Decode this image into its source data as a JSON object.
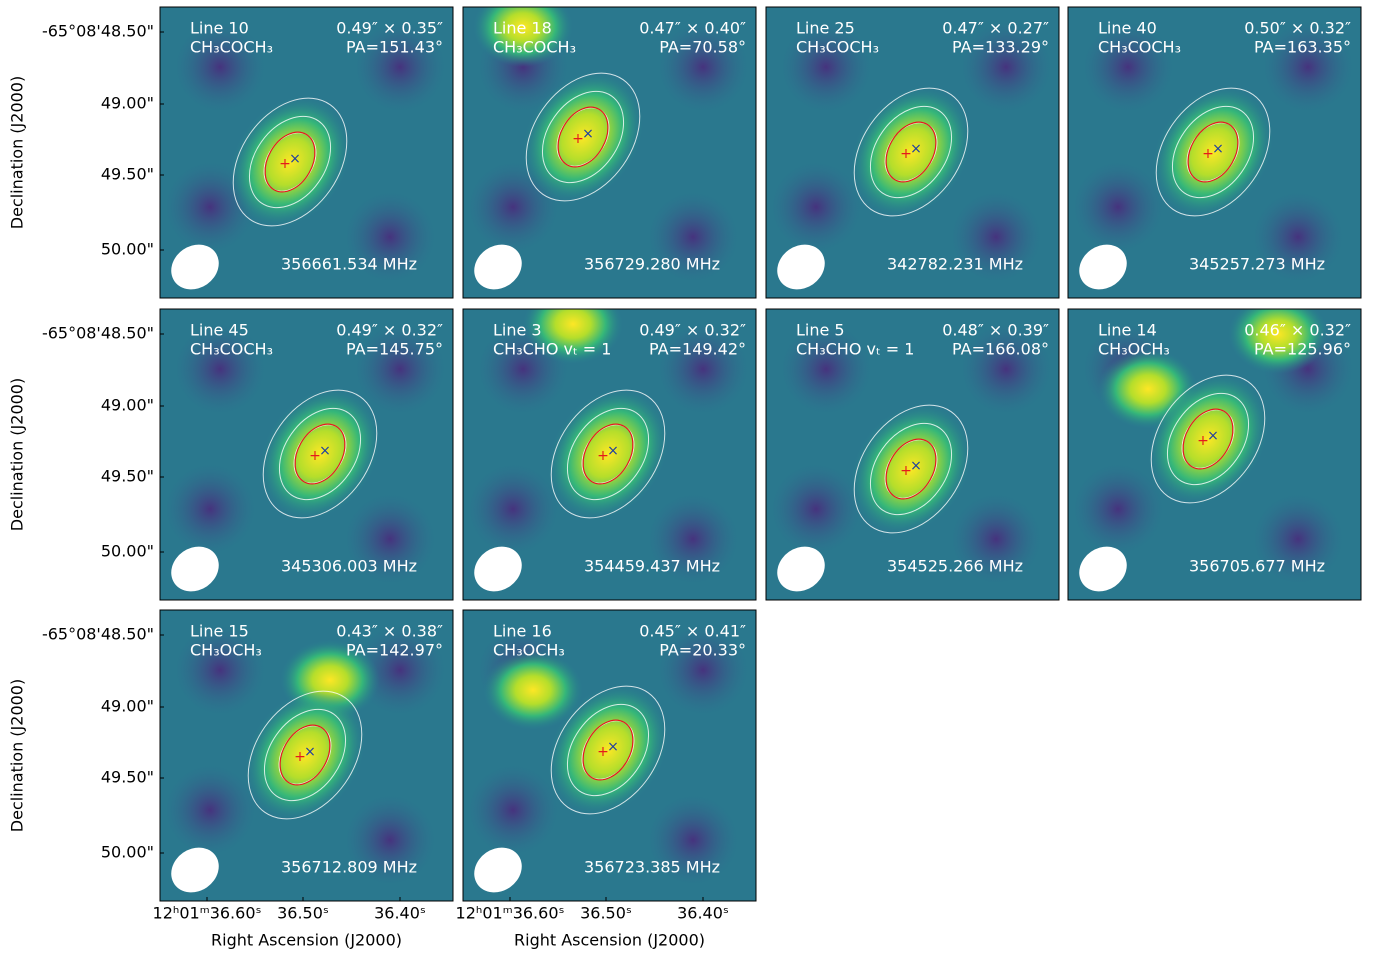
{
  "axes": {
    "y_label": "Declination (J2000)",
    "x_label": "Right Ascension (J2000)",
    "y_ticks": [
      "-65°08'48.50\"",
      "49.00\"",
      "49.50\"",
      "50.00\""
    ],
    "x_ticks": [
      "12ʰ01ᵐ36.60ˢ",
      "36.50ˢ",
      "36.40ˢ"
    ]
  },
  "panels": [
    {
      "line": "Line 10",
      "molecule": "CH₃COCH₃",
      "beam": "0.49″ × 0.35″",
      "pa": "PA=151.43°",
      "frequency": "356661.534 MHz"
    },
    {
      "line": "Line 18",
      "molecule": "CH₃COCH₃",
      "beam": "0.47″ × 0.40″",
      "pa": "PA=70.58°",
      "frequency": "356729.280 MHz"
    },
    {
      "line": "Line 25",
      "molecule": "CH₃COCH₃",
      "beam": "0.47″ × 0.27″",
      "pa": "PA=133.29°",
      "frequency": "342782.231 MHz"
    },
    {
      "line": "Line 40",
      "molecule": "CH₃COCH₃",
      "beam": "0.50″ × 0.32″",
      "pa": "PA=163.35°",
      "frequency": "345257.273 MHz"
    },
    {
      "line": "Line 45",
      "molecule": "CH₃COCH₃",
      "beam": "0.49″ × 0.32″",
      "pa": "PA=145.75°",
      "frequency": "345306.003 MHz"
    },
    {
      "line": "Line 3",
      "molecule": "CH₃CHO vₜ = 1",
      "beam": "0.49″ × 0.32″",
      "pa": "PA=149.42°",
      "frequency": "354459.437 MHz"
    },
    {
      "line": "Line 5",
      "molecule": "CH₃CHO vₜ = 1",
      "beam": "0.48″ × 0.39″",
      "pa": "PA=166.08°",
      "frequency": "354525.266 MHz"
    },
    {
      "line": "Line 14",
      "molecule": "CH₃OCH₃",
      "beam": "0.46″ × 0.32″",
      "pa": "PA=125.96°",
      "frequency": "356705.677 MHz"
    },
    {
      "line": "Line 15",
      "molecule": "CH₃OCH₃",
      "beam": "0.43″ × 0.38″",
      "pa": "PA=142.97°",
      "frequency": "356712.809 MHz"
    },
    {
      "line": "Line 16",
      "molecule": "CH₃OCH₃",
      "beam": "0.45″ × 0.41″",
      "pa": "PA=20.33°",
      "frequency": "356723.385 MHz"
    }
  ]
}
